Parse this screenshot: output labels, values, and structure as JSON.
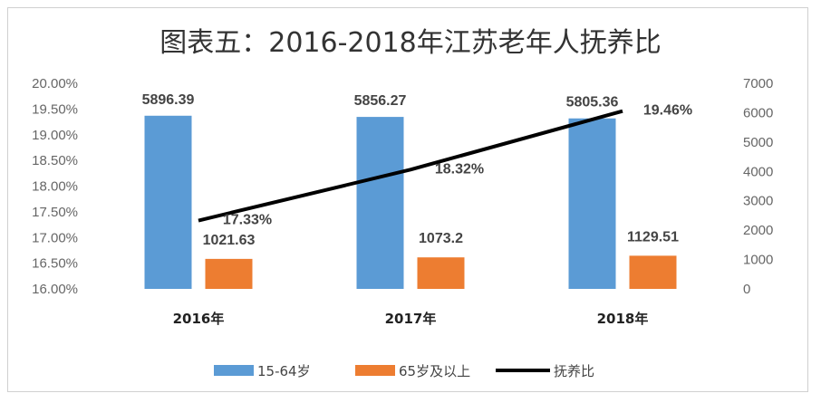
{
  "chart_data": {
    "type": "bar+line",
    "title": "图表五：2016-2018年江苏老年人抚养比",
    "categories": [
      "2016年",
      "2017年",
      "2018年"
    ],
    "series": [
      {
        "name": "15-64岁",
        "type": "bar",
        "axis": "right",
        "color": "#5B9BD5",
        "values": [
          5896.39,
          5856.27,
          5805.36
        ],
        "labels": [
          "5896.39",
          "5856.27",
          "5805.36"
        ]
      },
      {
        "name": "65岁及以上",
        "type": "bar",
        "axis": "right",
        "color": "#ED7D31",
        "values": [
          1021.63,
          1073.2,
          1129.51
        ],
        "labels": [
          "1021.63",
          "1073.2",
          "1129.51"
        ]
      },
      {
        "name": "抚养比",
        "type": "line",
        "axis": "left",
        "color": "#000000",
        "values": [
          17.33,
          18.32,
          19.46
        ],
        "labels": [
          "17.33%",
          "18.32%",
          "19.46%"
        ]
      }
    ],
    "left_axis": {
      "min": 16.0,
      "max": 20.0,
      "ticks": [
        "16.00%",
        "16.50%",
        "17.00%",
        "17.50%",
        "18.00%",
        "18.50%",
        "19.00%",
        "19.50%",
        "20.00%"
      ]
    },
    "right_axis": {
      "min": 0,
      "max": 7000,
      "ticks": [
        "0",
        "1000",
        "2000",
        "3000",
        "4000",
        "5000",
        "6000",
        "7000"
      ]
    },
    "legend_position": "bottom",
    "grid": false
  }
}
